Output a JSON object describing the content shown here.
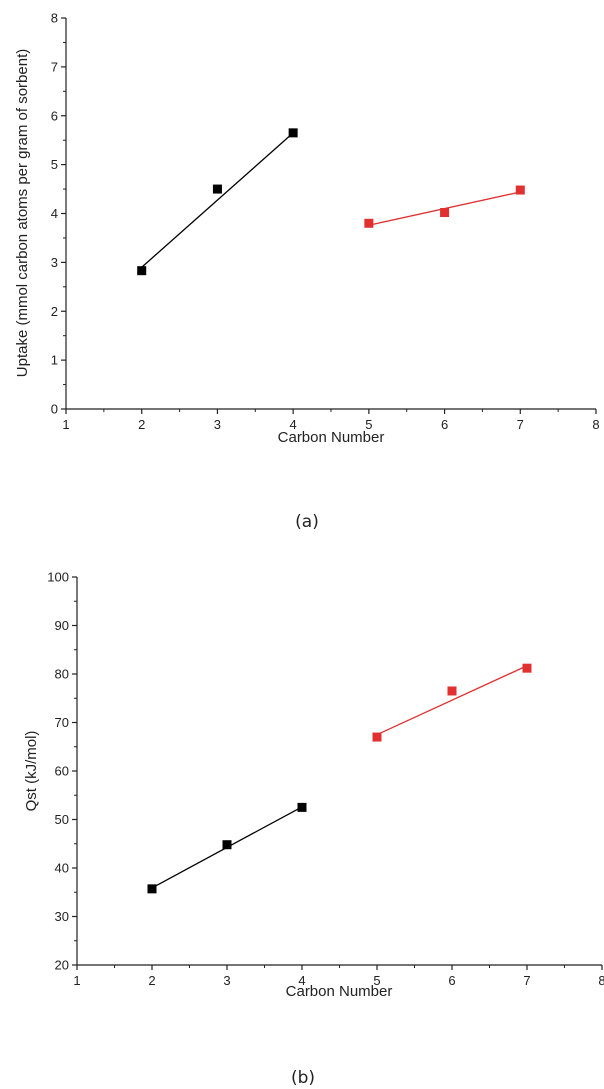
{
  "chart_data": [
    {
      "type": "scatter",
      "panel_label": "(a)",
      "title": "",
      "xlabel": "Carbon Number",
      "ylabel": "Uptake (mmol carbon atoms per gram of sorbent)",
      "xlim": [
        1,
        8
      ],
      "ylim": [
        0,
        8
      ],
      "xticks": [
        1,
        2,
        3,
        4,
        5,
        6,
        7,
        8
      ],
      "yticks": [
        0,
        1,
        2,
        3,
        4,
        5,
        6,
        7,
        8
      ],
      "grid": false,
      "legend": "none",
      "series": [
        {
          "color": "#000000",
          "x": [
            2,
            3,
            4
          ],
          "y": [
            2.83,
            4.5,
            5.65
          ],
          "fit": {
            "x": [
              2,
              4
            ],
            "y": [
              2.9,
              5.65
            ]
          }
        },
        {
          "color": "#e03030",
          "x": [
            5,
            6,
            7
          ],
          "y": [
            3.8,
            4.02,
            4.48
          ],
          "fit": {
            "x": [
              5,
              7
            ],
            "y": [
              3.76,
              4.44
            ]
          }
        }
      ]
    },
    {
      "type": "scatter",
      "panel_label": "(b)",
      "title": "",
      "xlabel": "Carbon Number",
      "ylabel": "Qst (kJ/mol)",
      "xlim": [
        1,
        8
      ],
      "ylim": [
        20,
        100
      ],
      "xticks": [
        1,
        2,
        3,
        4,
        5,
        6,
        7,
        8
      ],
      "yticks": [
        20,
        30,
        40,
        50,
        60,
        70,
        80,
        90,
        100
      ],
      "grid": false,
      "legend": "none",
      "series": [
        {
          "color": "#000000",
          "x": [
            2,
            3,
            4
          ],
          "y": [
            35.7,
            44.8,
            52.5
          ],
          "fit": {
            "x": [
              2,
              4
            ],
            "y": [
              35.9,
              52.6
            ]
          }
        },
        {
          "color": "#e03030",
          "x": [
            5,
            6,
            7
          ],
          "y": [
            67,
            76.5,
            81.2
          ],
          "fit": {
            "x": [
              5,
              7
            ],
            "y": [
              67.5,
              81.7
            ]
          }
        }
      ]
    }
  ]
}
